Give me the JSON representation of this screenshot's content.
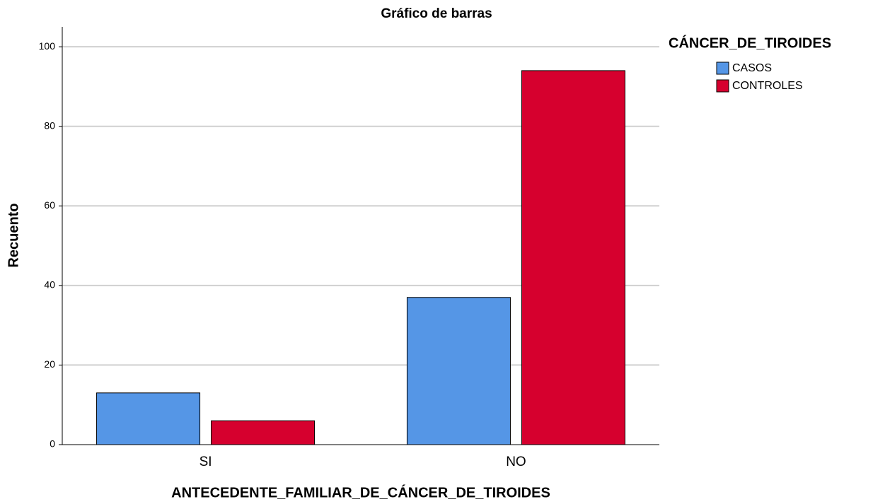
{
  "chart_data": {
    "type": "bar",
    "title": "Gráfico de barras",
    "x_label": "ANTECEDENTE_FAMILIAR_DE_CÁNCER_DE_TIROIDES",
    "y_label": "Recuento",
    "legend_title": "CÁNCER_DE_TIROIDES",
    "categories": [
      "SI",
      "NO"
    ],
    "series": [
      {
        "name": "CASOS",
        "color": "#5596e6",
        "values": [
          13,
          37
        ]
      },
      {
        "name": "CONTROLES",
        "color": "#d6002e",
        "values": [
          6,
          94
        ]
      }
    ],
    "ylim": [
      0,
      105
    ],
    "yticks": [
      0,
      20,
      40,
      60,
      80,
      100
    ],
    "grid": true,
    "legend": "right"
  }
}
